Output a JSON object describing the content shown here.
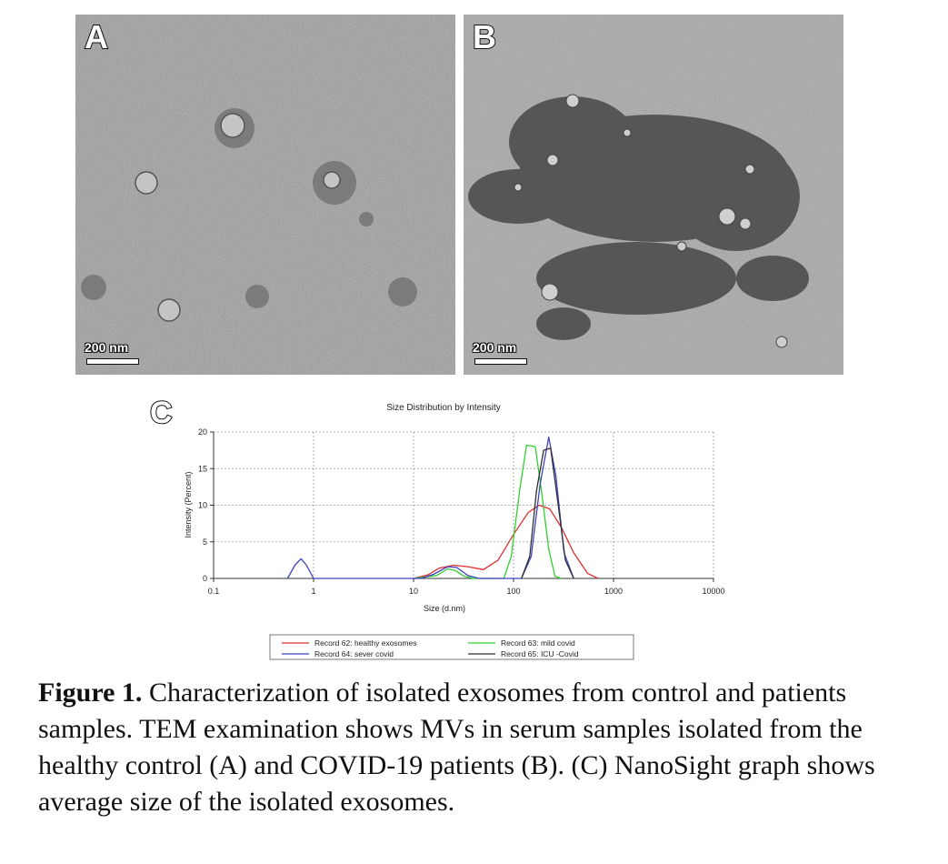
{
  "panels": {
    "a": {
      "letter": "A",
      "scale_label": "200 nm"
    },
    "b": {
      "letter": "B",
      "scale_label": "200 nm"
    },
    "c": {
      "letter": "C"
    }
  },
  "chart_data": {
    "type": "line",
    "title": "Size Distribution by Intensity",
    "xlabel": "Size (d.nm)",
    "ylabel": "Intensity (Percent)",
    "x_scale": "log",
    "xlim": [
      0.1,
      10000
    ],
    "ylim": [
      0,
      20
    ],
    "x_ticks": [
      "0.1",
      "1",
      "10",
      "100",
      "1000",
      "10000"
    ],
    "y_ticks": [
      "0",
      "5",
      "10",
      "15",
      "20"
    ],
    "grid": true,
    "legend_position": "bottom",
    "series": [
      {
        "name": "Record 62: healthy exosomes",
        "color": "#e03030",
        "points": [
          [
            10,
            0
          ],
          [
            14,
            0.5
          ],
          [
            18,
            1.4
          ],
          [
            25,
            1.8
          ],
          [
            35,
            1.6
          ],
          [
            50,
            1.2
          ],
          [
            70,
            2.5
          ],
          [
            100,
            6
          ],
          [
            140,
            9
          ],
          [
            180,
            10
          ],
          [
            230,
            9.5
          ],
          [
            300,
            7
          ],
          [
            400,
            3.5
          ],
          [
            550,
            0.7
          ],
          [
            700,
            0
          ]
        ]
      },
      {
        "name": "Record 63: mild covid",
        "color": "#30d030",
        "points": [
          [
            10,
            0
          ],
          [
            17,
            0.4
          ],
          [
            22,
            1.3
          ],
          [
            26,
            1.1
          ],
          [
            32,
            0.3
          ],
          [
            40,
            0
          ],
          [
            80,
            0
          ],
          [
            95,
            3
          ],
          [
            115,
            12
          ],
          [
            135,
            18.2
          ],
          [
            165,
            18
          ],
          [
            190,
            12
          ],
          [
            225,
            4
          ],
          [
            260,
            0.3
          ],
          [
            300,
            0
          ]
        ]
      },
      {
        "name": "Record 64: sever covid",
        "color": "#4040c0",
        "points": [
          [
            0.55,
            0
          ],
          [
            0.65,
            1.8
          ],
          [
            0.75,
            2.7
          ],
          [
            0.85,
            1.8
          ],
          [
            1,
            0
          ],
          [
            12,
            0
          ],
          [
            16,
            0.6
          ],
          [
            22,
            1.6
          ],
          [
            27,
            1.5
          ],
          [
            35,
            0.4
          ],
          [
            45,
            0
          ],
          [
            120,
            0
          ],
          [
            150,
            3
          ],
          [
            185,
            13
          ],
          [
            225,
            19.3
          ],
          [
            265,
            14
          ],
          [
            320,
            3.5
          ],
          [
            400,
            0
          ]
        ]
      },
      {
        "name": "Record 65: ICU -Covid",
        "color": "#303030",
        "points": [
          [
            120,
            0
          ],
          [
            145,
            3
          ],
          [
            170,
            12
          ],
          [
            200,
            17.5
          ],
          [
            235,
            17.8
          ],
          [
            280,
            10
          ],
          [
            330,
            2.5
          ],
          [
            400,
            0
          ]
        ]
      }
    ]
  },
  "caption": {
    "label": "Figure 1.",
    "text": " Characterization of isolated exosomes from control and patients samples. TEM examination shows MVs in serum samples isolated from the healthy control (A) and COVID-19 patients (B). (C) NanoSight graph shows average size of the isolated exosomes."
  }
}
